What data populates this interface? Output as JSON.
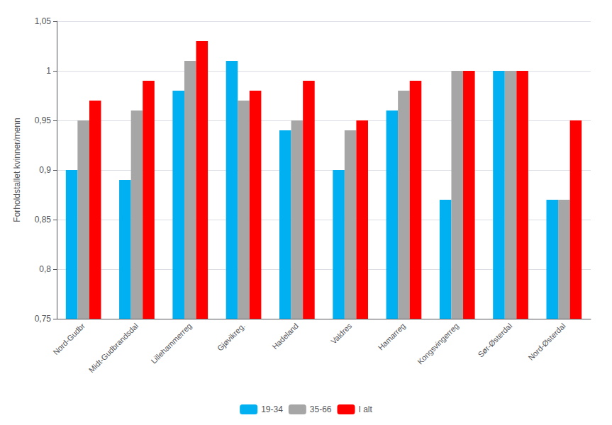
{
  "chart_data": {
    "type": "bar",
    "ylabel": "Forholdstallet kvinner/menn",
    "categories": [
      "Nord-Gudbr",
      "Midt-Gudbrandsdal",
      "Lillehammerreg",
      "Gjøvikreg.",
      "Hadeland",
      "Valdres",
      "Hamarreg",
      "Kongsvingerreg",
      "Sør-Østerdal",
      "Nord-Østerdal"
    ],
    "series": [
      {
        "name": "19-34",
        "color": "#00B0F0",
        "values": [
          0.9,
          0.89,
          0.98,
          1.01,
          0.94,
          0.9,
          0.96,
          0.87,
          1.0,
          0.87
        ]
      },
      {
        "name": "35-66",
        "color": "#A6A6A6",
        "values": [
          0.95,
          0.96,
          1.01,
          0.97,
          0.95,
          0.94,
          0.98,
          1.0,
          1.0,
          0.87
        ]
      },
      {
        "name": "I alt",
        "color": "#FF0000",
        "values": [
          0.97,
          0.99,
          1.03,
          0.98,
          0.99,
          0.95,
          0.99,
          1.0,
          1.0,
          0.95
        ]
      }
    ],
    "ylim": [
      0.75,
      1.05
    ],
    "yticks": [
      {
        "value": 0.75,
        "label": "0,75"
      },
      {
        "value": 0.8,
        "label": "0,8"
      },
      {
        "value": 0.85,
        "label": "0,85"
      },
      {
        "value": 0.9,
        "label": "0,9"
      },
      {
        "value": 0.95,
        "label": "0,95"
      },
      1,
      {
        "value": 1.05,
        "label": "1,05"
      }
    ],
    "grid": true,
    "legend": "bottom"
  }
}
